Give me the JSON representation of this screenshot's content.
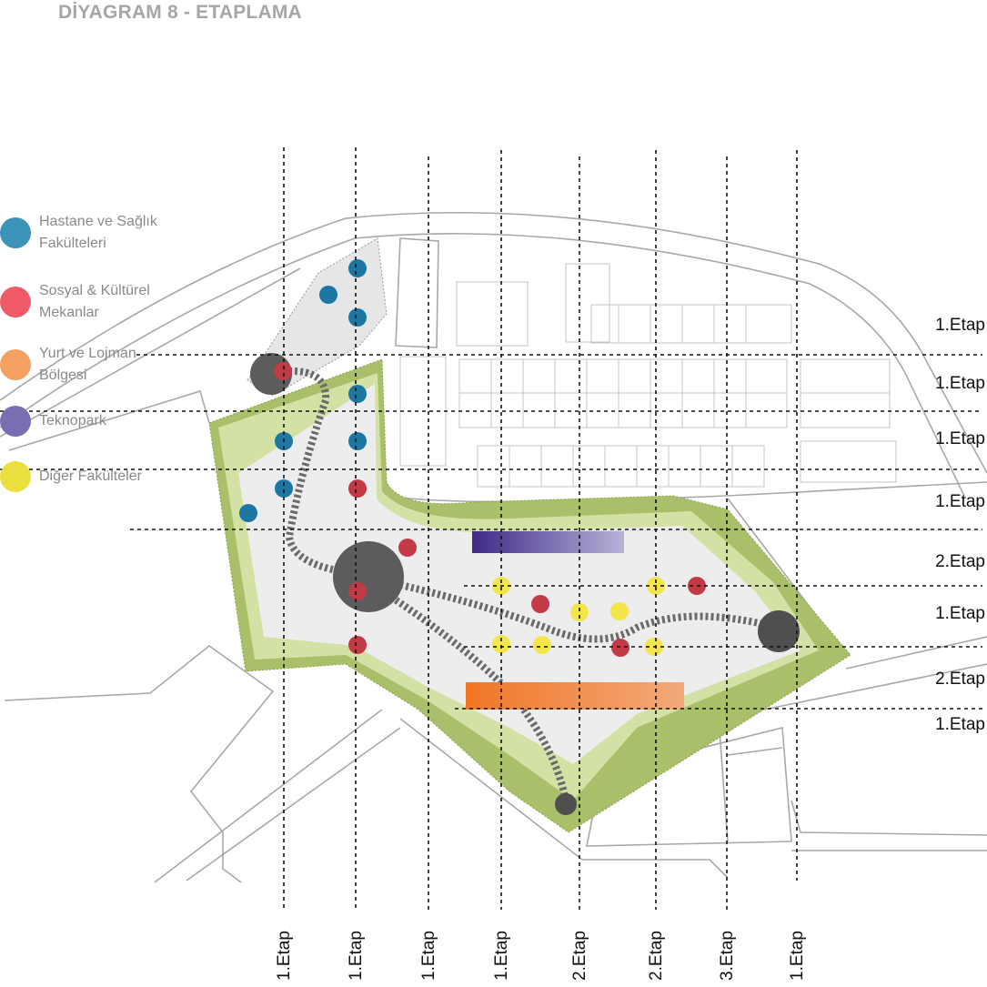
{
  "title": "DİYAGRAM 8 - ETAPLAMA",
  "legend": [
    {
      "label_line1": "Hastane ve Sağlık",
      "label_line2": "Fakülteleri",
      "color": "#3a93b8"
    },
    {
      "label_line1": "Sosyal & Kültürel",
      "label_line2": "Mekanlar",
      "color": "#ee5a68"
    },
    {
      "label_line1": "Yurt ve Lojman",
      "label_line2": "Bölgesi",
      "color": "#f4a061"
    },
    {
      "label_line1": "Teknopark",
      "label_line2": "",
      "color": "#7a6db2"
    },
    {
      "label_line1": "Diğer Fakülteler",
      "label_line2": "",
      "color": "#eadf3f"
    }
  ],
  "row_labels": [
    "1.Etap",
    "1.Etap",
    "1.Etap",
    "1.Etap",
    "2.Etap",
    "1.Etap",
    "2.Etap",
    "1.Etap"
  ],
  "column_labels": [
    "1.Etap",
    "1.Etap",
    "1.Etap",
    "1.Etap",
    "2.Etap",
    "2.Etap",
    "3.Etap",
    "1.Etap"
  ],
  "colors": {
    "health": "#1c77a3",
    "social": "#c23a46",
    "faculty": "#f2e64a",
    "techno": "#4a3791",
    "dorm": "#f07a2a",
    "hub": "#5a5a5a",
    "green_dark": "#9cb45a",
    "green_light": "#d4e3a6",
    "site_fill": "#eeeeee"
  }
}
